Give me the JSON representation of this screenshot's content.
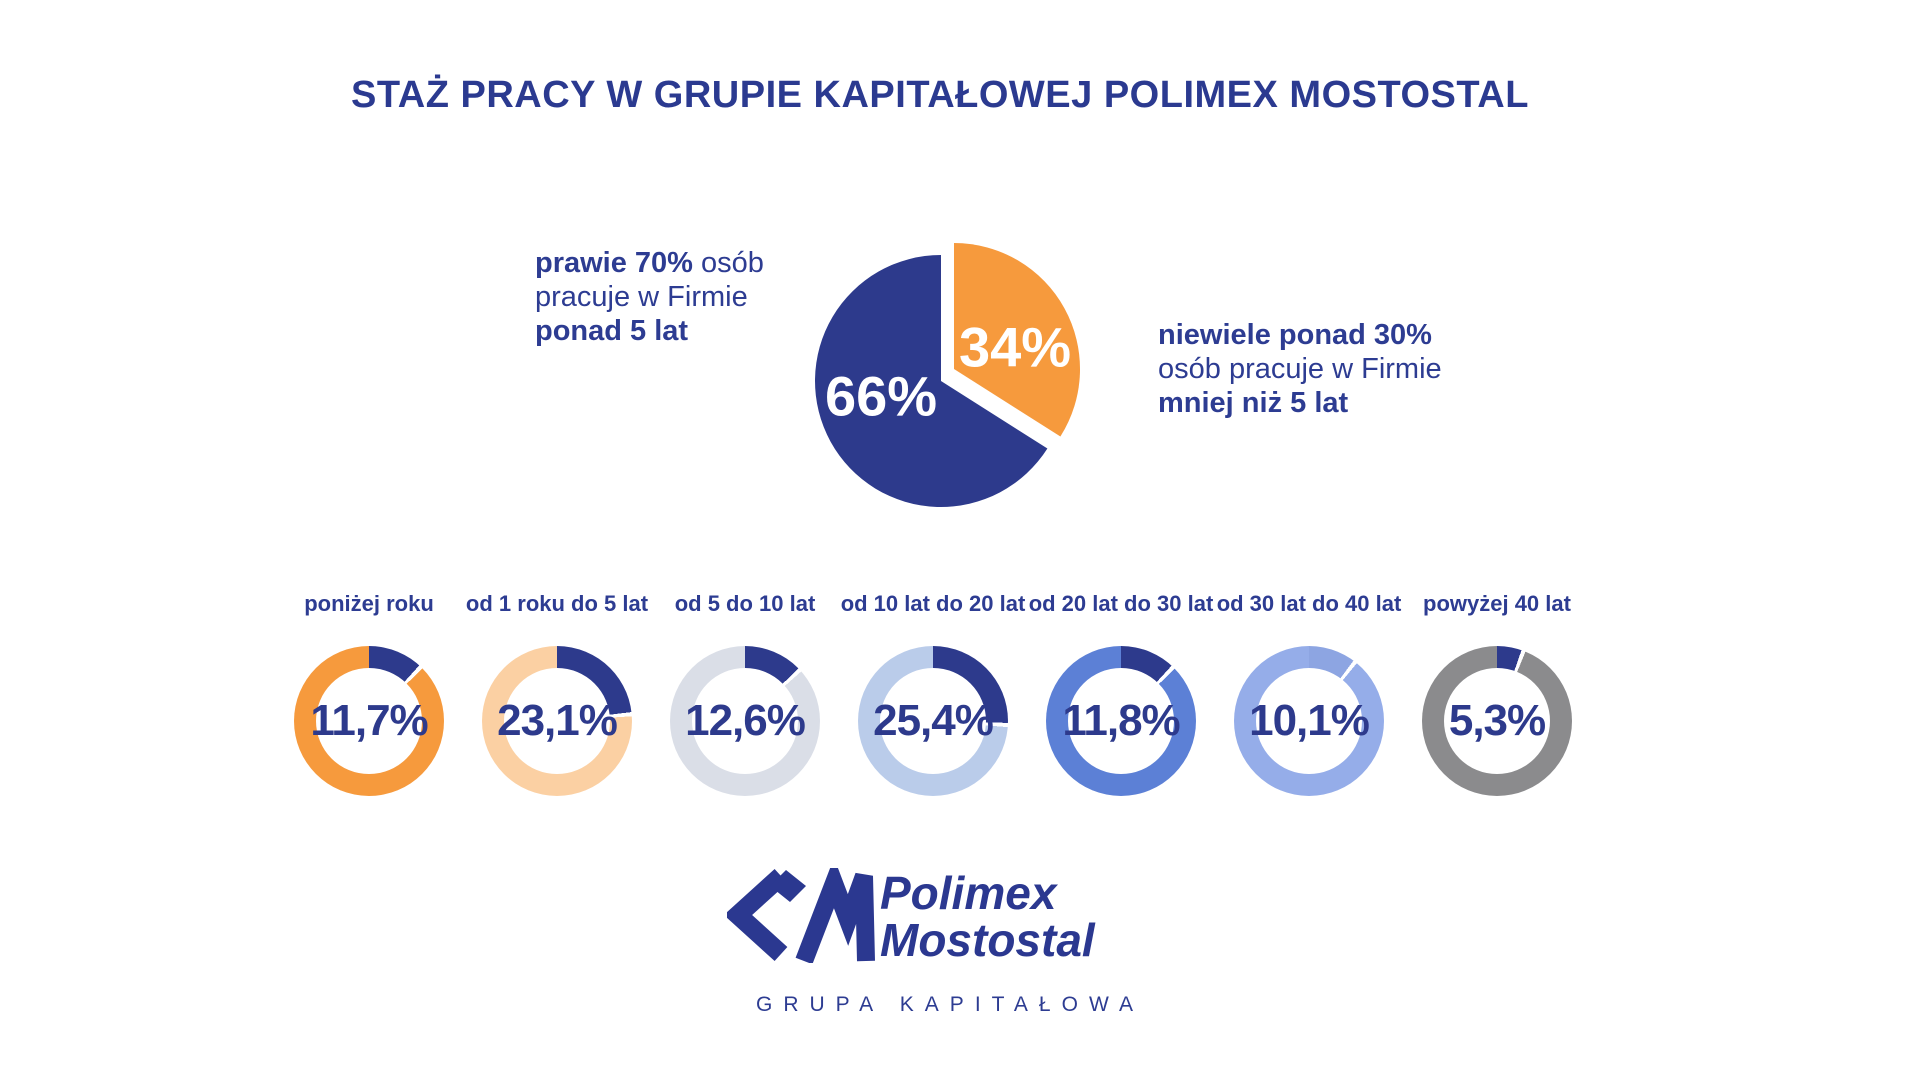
{
  "title": "STAŻ PRACY W GRUPIE KAPITAŁOWEJ POLIMEX MOSTOSTAL",
  "colors": {
    "navy": "#2d3a8c",
    "text_blue": "#2d3c92",
    "orange": "#f69a3d",
    "peach": "#fbd0a3",
    "light_gray": "#dadee7",
    "light_blue": "#baccea",
    "medium_blue": "#5c80d6",
    "periwinkle": "#95ade9",
    "gray": "#8b8b8d",
    "white": "#ffffff"
  },
  "notes": {
    "left": {
      "bold_lead": "prawie 70%",
      "tail": " osób",
      "line2": "pracuje w Firmie",
      "line3": "ponad 5 lat"
    },
    "right": {
      "line1": "niewiele ponad 30%",
      "line2": "osób pracuje w Firmie",
      "line3": "mniej niż 5 lat"
    }
  },
  "chart_data": [
    {
      "type": "pie",
      "labels": [
        "ponad 5 lat",
        "mniej niż 5 lat"
      ],
      "values": [
        66,
        34
      ],
      "slice_labels": [
        "66%",
        "34%"
      ],
      "colors": [
        "#2d3a8c",
        "#f69a3d"
      ],
      "start_angle_deg": 0,
      "exploded_slice": "mniej niż 5 lat"
    },
    {
      "type": "donut-row",
      "categories": [
        "poniżej roku",
        "od 1 roku do 5 lat",
        "od 5 do 10 lat",
        "od 10 lat do 20 lat",
        "od 20 lat do 30 lat",
        "od 30 lat do 40 lat",
        "powyżej 40 lat"
      ],
      "values": [
        11.7,
        23.1,
        12.6,
        25.4,
        11.8,
        10.1,
        5.3
      ],
      "value_labels": [
        "11,7%",
        "23,1%",
        "12,6%",
        "25,4%",
        "11,8%",
        "10,1%",
        "5,3%"
      ],
      "ring_colors": [
        "#f69a3d",
        "#fbd0a3",
        "#dadee7",
        "#baccea",
        "#5c80d6",
        "#95ade9",
        "#8b8b8d"
      ],
      "arc_colors": [
        "#2d3a8c",
        "#2d3a8c",
        "#2d3a8c",
        "#2d3a8c",
        "#2d3a8c",
        "#8da5e2",
        "#2d3a8c"
      ]
    }
  ],
  "logo": {
    "icon": "polimex-chevron-m-logo-icon",
    "name_line1": "Polimex",
    "name_line2": "Mostostal",
    "subtitle": "GRUPA KAPITAŁOWA"
  }
}
